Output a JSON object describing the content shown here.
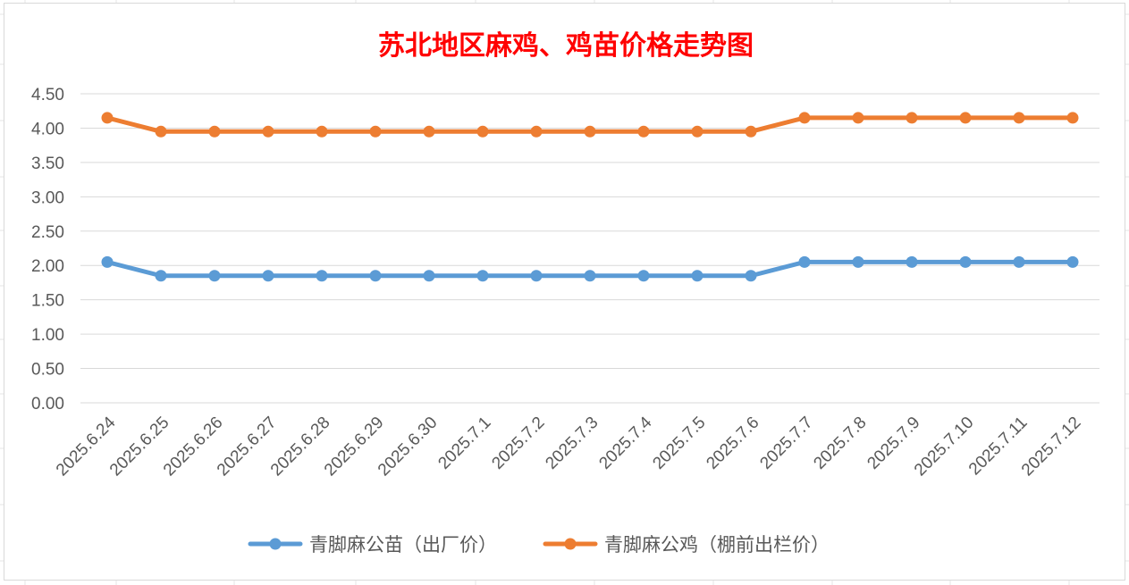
{
  "colors": {
    "title": "#ff0000",
    "series_1": "#5b9bd5",
    "series_2": "#ed7d31",
    "gridline": "#d9d9d9",
    "axis_text": "#595959"
  },
  "chart_data": {
    "type": "line",
    "title": "苏北地区麻鸡、鸡苗价格走势图",
    "xlabel": "",
    "ylabel": "",
    "ylim": [
      0,
      4.5
    ],
    "y_ticks": [
      "0.00",
      "0.50",
      "1.00",
      "1.50",
      "2.00",
      "2.50",
      "3.00",
      "3.50",
      "4.00",
      "4.50"
    ],
    "categories": [
      "2025.6.24",
      "2025.6.25",
      "2025.6.26",
      "2025.6.27",
      "2025.6.28",
      "2025.6.29",
      "2025.6.30",
      "2025.7.1",
      "2025.7.2",
      "2025.7.3",
      "2025.7.4",
      "2025.7.5",
      "2025.7.6",
      "2025.7.7",
      "2025.7.8",
      "2025.7.9",
      "2025.7.10",
      "2025.7.11",
      "2025.7.12"
    ],
    "series": [
      {
        "name": "青脚麻公苗（出厂价）",
        "color": "#5b9bd5",
        "values": [
          2.05,
          1.85,
          1.85,
          1.85,
          1.85,
          1.85,
          1.85,
          1.85,
          1.85,
          1.85,
          1.85,
          1.85,
          1.85,
          2.05,
          2.05,
          2.05,
          2.05,
          2.05,
          2.05
        ]
      },
      {
        "name": "青脚麻公鸡（棚前出栏价）",
        "color": "#ed7d31",
        "values": [
          4.15,
          3.95,
          3.95,
          3.95,
          3.95,
          3.95,
          3.95,
          3.95,
          3.95,
          3.95,
          3.95,
          3.95,
          3.95,
          4.15,
          4.15,
          4.15,
          4.15,
          4.15,
          4.15
        ]
      }
    ],
    "grid": true,
    "legend_position": "bottom"
  }
}
